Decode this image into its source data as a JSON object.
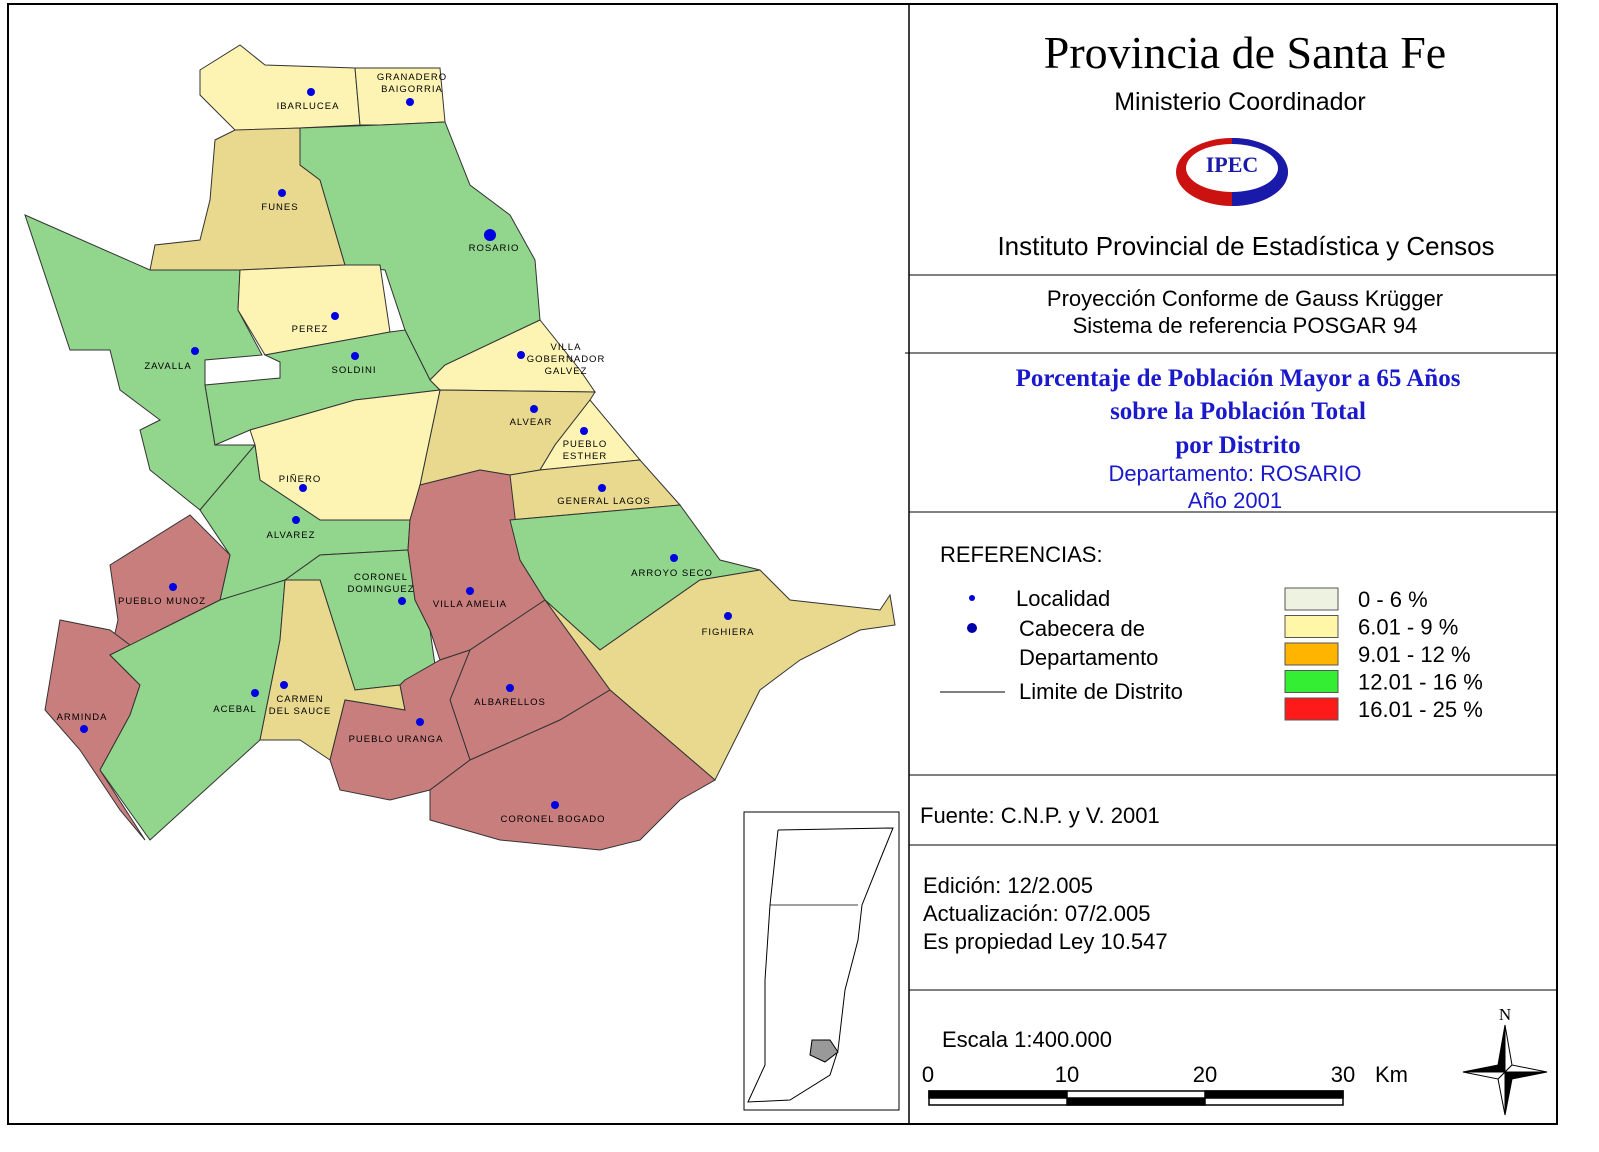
{
  "header": {
    "title": "Provincia de Santa Fe",
    "subtitle": "Ministerio Coordinador",
    "logo": "IPEC",
    "institute": "Instituto Provincial de Estadística y Censos"
  },
  "projection": [
    "Proyección Conforme de Gauss Krügger",
    "Sistema de referencia POSGAR 94"
  ],
  "map_title": [
    "Porcentaje de Población Mayor a 65 Años",
    "sobre la Población Total",
    "por Distrito"
  ],
  "map_subtitle": [
    "Departamento:  ROSARIO",
    "Año 2001"
  ],
  "legend": {
    "title": "REFERENCIAS:",
    "symbols": [
      [
        "Localidad"
      ],
      [
        "Cabecera de",
        "Departamento"
      ],
      [
        "Limite de Distrito"
      ]
    ],
    "classes": [
      {
        "label": "0 - 6 %",
        "color": "#eef2e0"
      },
      {
        "label": "6.01 - 9 %",
        "color": "#fff6a8"
      },
      {
        "label": "9.01 - 12 %",
        "color": "#ffb400"
      },
      {
        "label": "12.01 - 16 %",
        "color": "#33ee33"
      },
      {
        "label": "16.01 - 25 %",
        "color": "#ff1a1a"
      }
    ]
  },
  "source": "Fuente:  C.N.P. y V. 2001",
  "edition": [
    "Edición:  12/2.005",
    "Actualización:  07/2.005",
    "Es propiedad Ley 10.547"
  ],
  "scale": {
    "label": "Escala 1:400.000",
    "ticks": [
      "0",
      "10",
      "20",
      "30"
    ],
    "unit": "Km"
  },
  "north": "N",
  "districts": [
    {
      "name": [
        "IBARLUCEA"
      ],
      "color": "#fdf4b4"
    },
    {
      "name": [
        "GRANADERO",
        "BAIGORRIA"
      ],
      "color": "#fdf4b4"
    },
    {
      "name": [
        "FUNES"
      ],
      "color": "#e8d98f"
    },
    {
      "name": [
        "ROSARIO"
      ],
      "color": "#92d58c"
    },
    {
      "name": [
        "ZAVALLA"
      ],
      "color": "#92d58c"
    },
    {
      "name": [
        "PEREZ"
      ],
      "color": "#fdf4b4"
    },
    {
      "name": [
        "SOLDINI"
      ],
      "color": "#92d58c"
    },
    {
      "name": [
        "VILLA",
        "GOBERNADOR",
        "GALVEZ"
      ],
      "color": "#fdf4b4"
    },
    {
      "name": [
        "ALVEAR"
      ],
      "color": "#e8d98f"
    },
    {
      "name": [
        "PUEBLO",
        "ESTHER"
      ],
      "color": "#fdf4b4"
    },
    {
      "name": [
        "PIÑERO"
      ],
      "color": "#fdf4b4"
    },
    {
      "name": [
        "GENERAL LAGOS"
      ],
      "color": "#e8d98f"
    },
    {
      "name": [
        "ALVAREZ"
      ],
      "color": "#92d58c"
    },
    {
      "name": [
        "PUEBLO MUNOZ"
      ],
      "color": "#c97e7e"
    },
    {
      "name": [
        "CORONEL",
        "DOMINGUEZ"
      ],
      "color": "#92d58c"
    },
    {
      "name": [
        "VILLA AMELIA"
      ],
      "color": "#c97e7e"
    },
    {
      "name": [
        "ARROYO SECO"
      ],
      "color": "#92d58c"
    },
    {
      "name": [
        "FIGHIERA"
      ],
      "color": "#e8d98f"
    },
    {
      "name": [
        "ARMINDA"
      ],
      "color": "#c97e7e"
    },
    {
      "name": [
        "ACEBAL"
      ],
      "color": "#92d58c"
    },
    {
      "name": [
        "CARMEN",
        "DEL SAUCE"
      ],
      "color": "#e8d98f"
    },
    {
      "name": [
        "ALBARELLOS"
      ],
      "color": "#c97e7e"
    },
    {
      "name": [
        "PUEBLO URANGA"
      ],
      "color": "#c97e7e"
    },
    {
      "name": [
        "CORONEL BOGADO"
      ],
      "color": "#c97e7e"
    }
  ]
}
